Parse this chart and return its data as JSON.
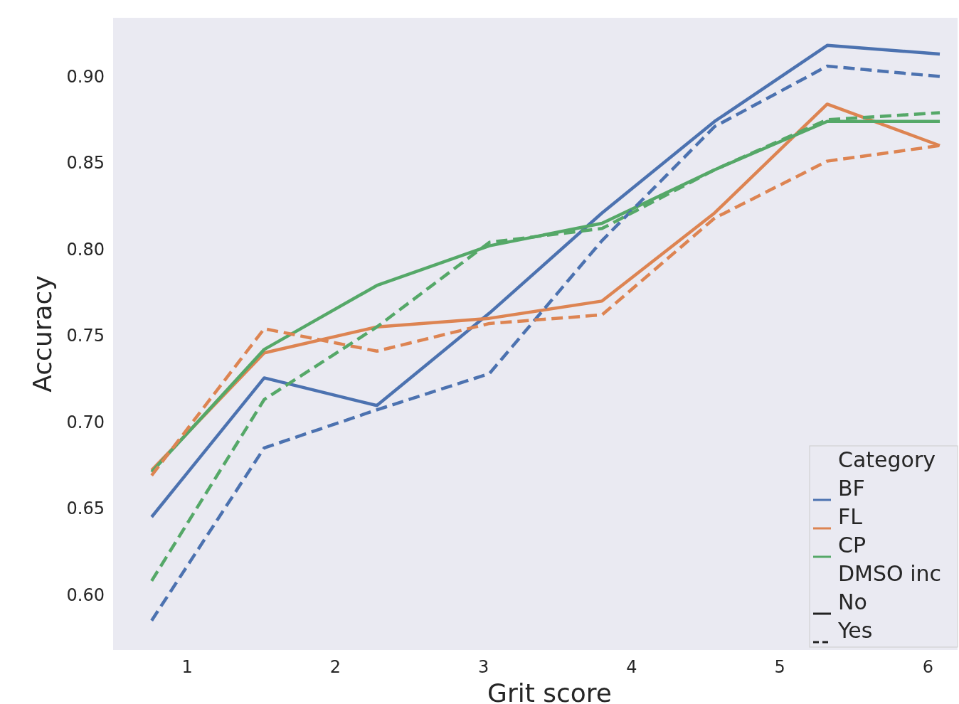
{
  "chart_data": {
    "type": "line",
    "xlabel": "Grit score",
    "ylabel": "Accuracy",
    "x": [
      0.76,
      1.52,
      2.28,
      3.04,
      3.8,
      4.56,
      5.32,
      6.08
    ],
    "xlim": [
      0.5,
      6.2
    ],
    "xticks": [
      1,
      2,
      3,
      4,
      5,
      6
    ],
    "ylim": [
      0.568,
      0.934
    ],
    "yticks": [
      {
        "value": 0.6,
        "label": "0.60"
      },
      {
        "value": 0.65,
        "label": "0.65"
      },
      {
        "value": 0.7,
        "label": "0.70"
      },
      {
        "value": 0.75,
        "label": "0.75"
      },
      {
        "value": 0.8,
        "label": "0.80"
      },
      {
        "value": 0.85,
        "label": "0.85"
      },
      {
        "value": 0.9,
        "label": "0.90"
      }
    ],
    "grid": false,
    "legend": "bottom right",
    "legend_title": "Category",
    "marker": "none",
    "series": [
      {
        "name": "BF",
        "color": "#4c72b0",
        "line_style": "solid",
        "values": [
          0.645,
          0.7255,
          0.7095,
          0.763,
          0.821,
          0.874,
          0.918,
          0.913
        ]
      },
      {
        "name": "FL",
        "color": "#dd8452",
        "line_style": "solid",
        "values": [
          0.672,
          0.74,
          0.755,
          0.76,
          0.77,
          0.821,
          0.884,
          0.86
        ]
      },
      {
        "name": "CP",
        "color": "#55a868",
        "line_style": "solid",
        "values": [
          0.671,
          0.742,
          0.779,
          0.802,
          0.815,
          0.846,
          0.874,
          0.874
        ]
      },
      {
        "color": "#4c72b0",
        "line_style": "dashed",
        "values": [
          0.585,
          0.685,
          0.707,
          0.728,
          0.805,
          0.871,
          0.906,
          0.9
        ]
      },
      {
        "color": "#dd8452",
        "line_style": "dashed",
        "values": [
          0.669,
          0.754,
          0.741,
          0.757,
          0.762,
          0.818,
          0.851,
          0.86
        ]
      },
      {
        "color": "#55a868",
        "line_style": "dashed",
        "values": [
          0.608,
          0.713,
          0.755,
          0.804,
          0.812,
          0.846,
          0.875,
          0.879
        ]
      }
    ],
    "annotations": [
      "DMSO inc",
      "No",
      "Yes"
    ]
  }
}
